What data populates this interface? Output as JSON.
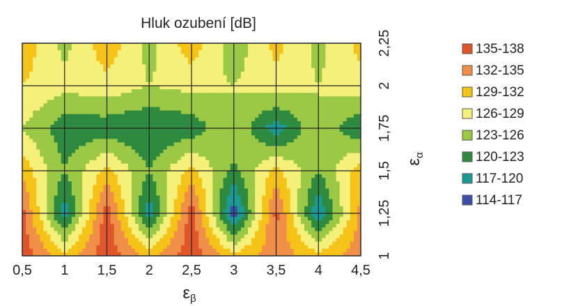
{
  "chart_data": {
    "type": "contour",
    "title": "Hluk ozubení [dB]",
    "xlabel": "εβ",
    "ylabel": "εα",
    "x_ticks": [
      "0,5",
      "1",
      "1,5",
      "2",
      "2,5",
      "3",
      "3,5",
      "4",
      "4,5"
    ],
    "y_ticks": [
      "1",
      "1,25",
      "1,5",
      "1,75",
      "2",
      "2,25"
    ],
    "xlim": [
      0.5,
      4.5
    ],
    "ylim": [
      1,
      2.25
    ],
    "grid": true,
    "legend_position": "right",
    "levels": [
      {
        "range": "135-138",
        "color": "#e0562a"
      },
      {
        "range": "132-135",
        "color": "#f09048"
      },
      {
        "range": "129-132",
        "color": "#f5c218"
      },
      {
        "range": "126-129",
        "color": "#f5f07a"
      },
      {
        "range": "123-126",
        "color": "#9bc845"
      },
      {
        "range": "120-123",
        "color": "#2e8a3e"
      },
      {
        "range": "117-120",
        "color": "#1b9a96"
      },
      {
        "range": "114-117",
        "color": "#3a4ea8"
      }
    ]
  }
}
